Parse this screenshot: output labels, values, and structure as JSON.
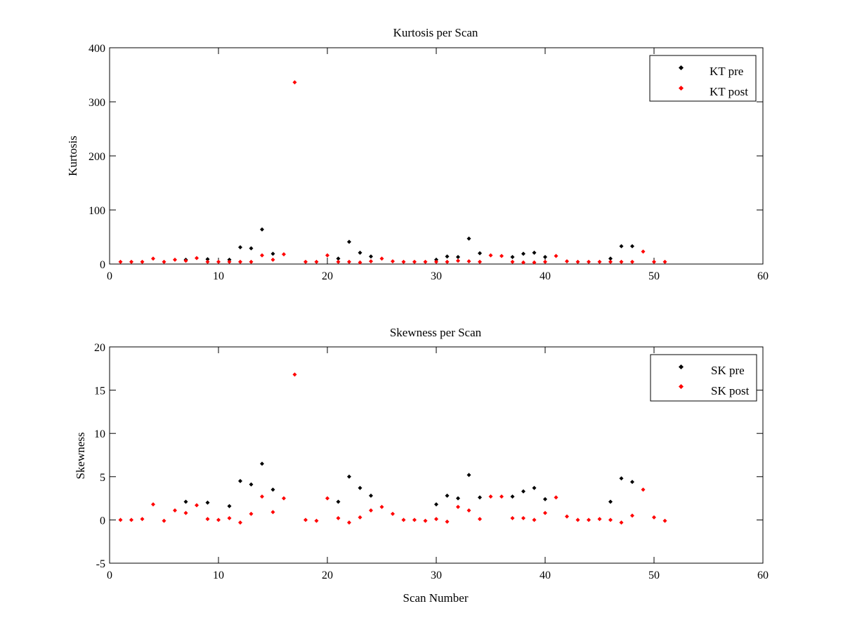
{
  "chart_data": [
    {
      "type": "scatter",
      "title": "Kurtosis per Scan",
      "xlabel": "",
      "ylabel": "Kurtosis",
      "xlim": [
        0,
        60
      ],
      "ylim": [
        0,
        400
      ],
      "xticks": [
        0,
        10,
        20,
        30,
        40,
        50,
        60
      ],
      "yticks": [
        0,
        100,
        200,
        300,
        400
      ],
      "grid": false,
      "legend_position": "top-right",
      "series": [
        {
          "name": "KT pre",
          "color": "#000000",
          "x": [
            7,
            9,
            11,
            12,
            13,
            14,
            15,
            21,
            22,
            23,
            24,
            30,
            31,
            32,
            33,
            34,
            37,
            38,
            39,
            40,
            46,
            47,
            48
          ],
          "y": [
            8,
            9,
            8,
            31,
            29,
            64,
            19,
            10,
            41,
            21,
            14,
            8,
            14,
            13,
            47,
            20,
            13,
            19,
            21,
            13,
            10,
            33,
            33
          ]
        },
        {
          "name": "KT post",
          "color": "#ff0000",
          "x": [
            1,
            2,
            3,
            4,
            5,
            6,
            7,
            8,
            9,
            10,
            11,
            12,
            13,
            14,
            15,
            16,
            17,
            18,
            19,
            20,
            21,
            22,
            23,
            24,
            25,
            26,
            27,
            28,
            29,
            30,
            31,
            32,
            33,
            34,
            35,
            36,
            37,
            38,
            39,
            40,
            41,
            42,
            43,
            44,
            45,
            46,
            47,
            48,
            49,
            50,
            51
          ],
          "y": [
            4,
            4,
            4,
            10,
            4,
            8,
            6,
            11,
            4,
            4,
            4,
            4,
            4,
            16,
            8,
            18,
            336,
            4,
            4,
            16,
            4,
            4,
            3,
            5,
            10,
            5,
            4,
            4,
            4,
            4,
            4,
            6,
            5,
            4,
            16,
            15,
            4,
            3,
            3,
            4,
            15,
            5,
            4,
            4,
            4,
            4,
            4,
            4,
            23,
            4,
            4
          ]
        }
      ]
    },
    {
      "type": "scatter",
      "title": "Skewness per Scan",
      "xlabel": "Scan Number",
      "ylabel": "Skewness",
      "xlim": [
        0,
        60
      ],
      "ylim": [
        -5,
        20
      ],
      "xticks": [
        0,
        10,
        20,
        30,
        40,
        50,
        60
      ],
      "yticks": [
        -5,
        0,
        5,
        10,
        15,
        20
      ],
      "grid": false,
      "legend_position": "top-right",
      "series": [
        {
          "name": "SK pre",
          "color": "#000000",
          "x": [
            7,
            9,
            11,
            12,
            13,
            14,
            15,
            21,
            22,
            23,
            24,
            30,
            31,
            32,
            33,
            34,
            37,
            38,
            39,
            40,
            46,
            47,
            48
          ],
          "y": [
            2.1,
            2.0,
            1.6,
            4.5,
            4.1,
            6.5,
            3.5,
            2.1,
            5.0,
            3.7,
            2.8,
            1.8,
            2.8,
            2.5,
            5.2,
            2.6,
            2.7,
            3.3,
            3.7,
            2.4,
            2.1,
            4.8,
            4.4
          ]
        },
        {
          "name": "SK post",
          "color": "#ff0000",
          "x": [
            1,
            2,
            3,
            4,
            5,
            6,
            7,
            8,
            9,
            10,
            11,
            12,
            13,
            14,
            15,
            16,
            17,
            18,
            19,
            20,
            21,
            22,
            23,
            24,
            25,
            26,
            27,
            28,
            29,
            30,
            31,
            32,
            33,
            34,
            35,
            36,
            37,
            38,
            39,
            40,
            41,
            42,
            43,
            44,
            45,
            46,
            47,
            48,
            49,
            50,
            51
          ],
          "y": [
            0.0,
            0.0,
            0.1,
            1.8,
            -0.1,
            1.1,
            0.8,
            1.7,
            0.1,
            0.0,
            0.2,
            -0.3,
            0.7,
            2.7,
            0.9,
            2.5,
            16.8,
            0.0,
            -0.1,
            2.5,
            0.2,
            -0.3,
            0.3,
            1.1,
            1.5,
            0.7,
            0.0,
            0.0,
            -0.1,
            0.1,
            -0.2,
            1.5,
            1.1,
            0.1,
            2.7,
            2.7,
            0.2,
            0.2,
            0.0,
            0.8,
            2.6,
            0.4,
            0.0,
            0.0,
            0.1,
            0.0,
            -0.3,
            0.5,
            3.5,
            0.3,
            -0.1
          ]
        }
      ]
    }
  ]
}
